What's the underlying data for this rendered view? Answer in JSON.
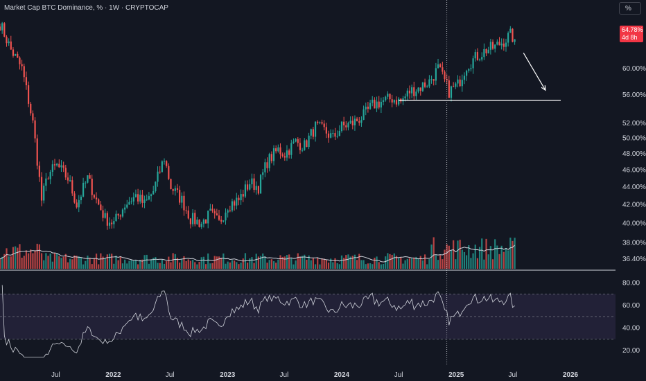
{
  "header": {
    "title": "Market Cap BTC Dominance, % · 1W · CRYPTOCAP",
    "scale_button": "%"
  },
  "price_badge": {
    "value": "64.78%",
    "countdown": "4d 8h"
  },
  "colors": {
    "background": "#131722",
    "up": "#26a69a",
    "down": "#ef5350",
    "badge": "#f23645",
    "rsi_band": "#2a2740",
    "line": "#d1d4dc"
  },
  "chart_data": [
    {
      "type": "candlestick",
      "title": "Market Cap BTC Dominance, % · 1W · CRYPTOCAP",
      "timeframe": "1W",
      "y_scale": "log",
      "ylim": [
        35.5,
        69
      ],
      "y_ticks": [
        "64.78%",
        "60.00%",
        "56.00%",
        "52.00%",
        "50.00%",
        "48.00%",
        "46.00%",
        "44.00%",
        "42.00%",
        "40.00%",
        "38.00%",
        "36.40%"
      ],
      "x_ticks": [
        "Jul",
        "2022",
        "Jul",
        "2023",
        "Jul",
        "2024",
        "Jul",
        "2025",
        "Jul",
        "2026"
      ],
      "x_ticks_bold": [
        "2022",
        "2023",
        "2024",
        "2025",
        "2026"
      ],
      "x_range": [
        "2021-01-04",
        "2026-05-25"
      ],
      "last_close": 64.78,
      "approx_weekly_close": [
        [
          "2021-01-04",
          67.5
        ],
        [
          "2021-02-08",
          63.0
        ],
        [
          "2021-03-15",
          60.0
        ],
        [
          "2021-04-19",
          52.0
        ],
        [
          "2021-05-17",
          42.5
        ],
        [
          "2021-06-07",
          45.5
        ],
        [
          "2021-07-05",
          46.5
        ],
        [
          "2021-08-09",
          45.0
        ],
        [
          "2021-09-06",
          42.0
        ],
        [
          "2021-10-11",
          45.0
        ],
        [
          "2021-11-08",
          42.5
        ],
        [
          "2021-12-06",
          40.5
        ],
        [
          "2022-01-03",
          40.0
        ],
        [
          "2022-02-07",
          42.0
        ],
        [
          "2022-03-14",
          43.0
        ],
        [
          "2022-04-11",
          42.0
        ],
        [
          "2022-05-09",
          43.5
        ],
        [
          "2022-06-13",
          47.5
        ],
        [
          "2022-07-04",
          44.0
        ],
        [
          "2022-08-08",
          42.5
        ],
        [
          "2022-09-05",
          40.5
        ],
        [
          "2022-10-10",
          40.0
        ],
        [
          "2022-11-07",
          41.0
        ],
        [
          "2022-12-05",
          40.0
        ],
        [
          "2023-01-02",
          42.0
        ],
        [
          "2023-02-06",
          42.5
        ],
        [
          "2023-03-13",
          44.5
        ],
        [
          "2023-04-10",
          44.0
        ],
        [
          "2023-05-08",
          47.0
        ],
        [
          "2023-06-12",
          48.5
        ],
        [
          "2023-07-03",
          48.0
        ],
        [
          "2023-08-07",
          49.5
        ],
        [
          "2023-09-04",
          49.0
        ],
        [
          "2023-10-09",
          51.5
        ],
        [
          "2023-11-06",
          51.0
        ],
        [
          "2023-12-04",
          50.0
        ],
        [
          "2024-01-01",
          51.5
        ],
        [
          "2024-02-05",
          52.0
        ],
        [
          "2024-03-11",
          53.0
        ],
        [
          "2024-04-08",
          54.5
        ],
        [
          "2024-05-06",
          55.0
        ],
        [
          "2024-06-10",
          55.5
        ],
        [
          "2024-07-08",
          55.0
        ],
        [
          "2024-08-05",
          56.5
        ],
        [
          "2024-09-02",
          57.0
        ],
        [
          "2024-10-07",
          58.0
        ],
        [
          "2024-11-04",
          60.0
        ],
        [
          "2024-11-25",
          58.0
        ],
        [
          "2024-12-09",
          56.5
        ],
        [
          "2025-01-06",
          57.5
        ],
        [
          "2025-02-03",
          60.5
        ],
        [
          "2025-03-10",
          62.0
        ],
        [
          "2025-04-07",
          63.0
        ],
        [
          "2025-05-05",
          63.5
        ],
        [
          "2025-06-02",
          64.5
        ],
        [
          "2025-06-23",
          65.5
        ],
        [
          "2025-07-07",
          64.78
        ]
      ],
      "volume_panel": {
        "moving_average": true
      },
      "annotations": [
        {
          "type": "horizontal_line",
          "value": 55.2,
          "from": "2024-07-01",
          "to": "2025-12-01"
        },
        {
          "type": "vertical_dotted_line",
          "x": "2024-12-02"
        },
        {
          "type": "arrow",
          "from": [
            "2025-08-04",
            62.5
          ],
          "to": [
            "2025-10-13",
            56.7
          ]
        }
      ]
    },
    {
      "type": "line",
      "series": [
        {
          "name": "",
          "values": "RSI oscillator"
        }
      ],
      "ylim": [
        10,
        90
      ],
      "y_ticks": [
        "80.00",
        "60.00",
        "40.00",
        "20.00"
      ],
      "band": [
        30,
        70
      ],
      "midline": 50
    }
  ]
}
